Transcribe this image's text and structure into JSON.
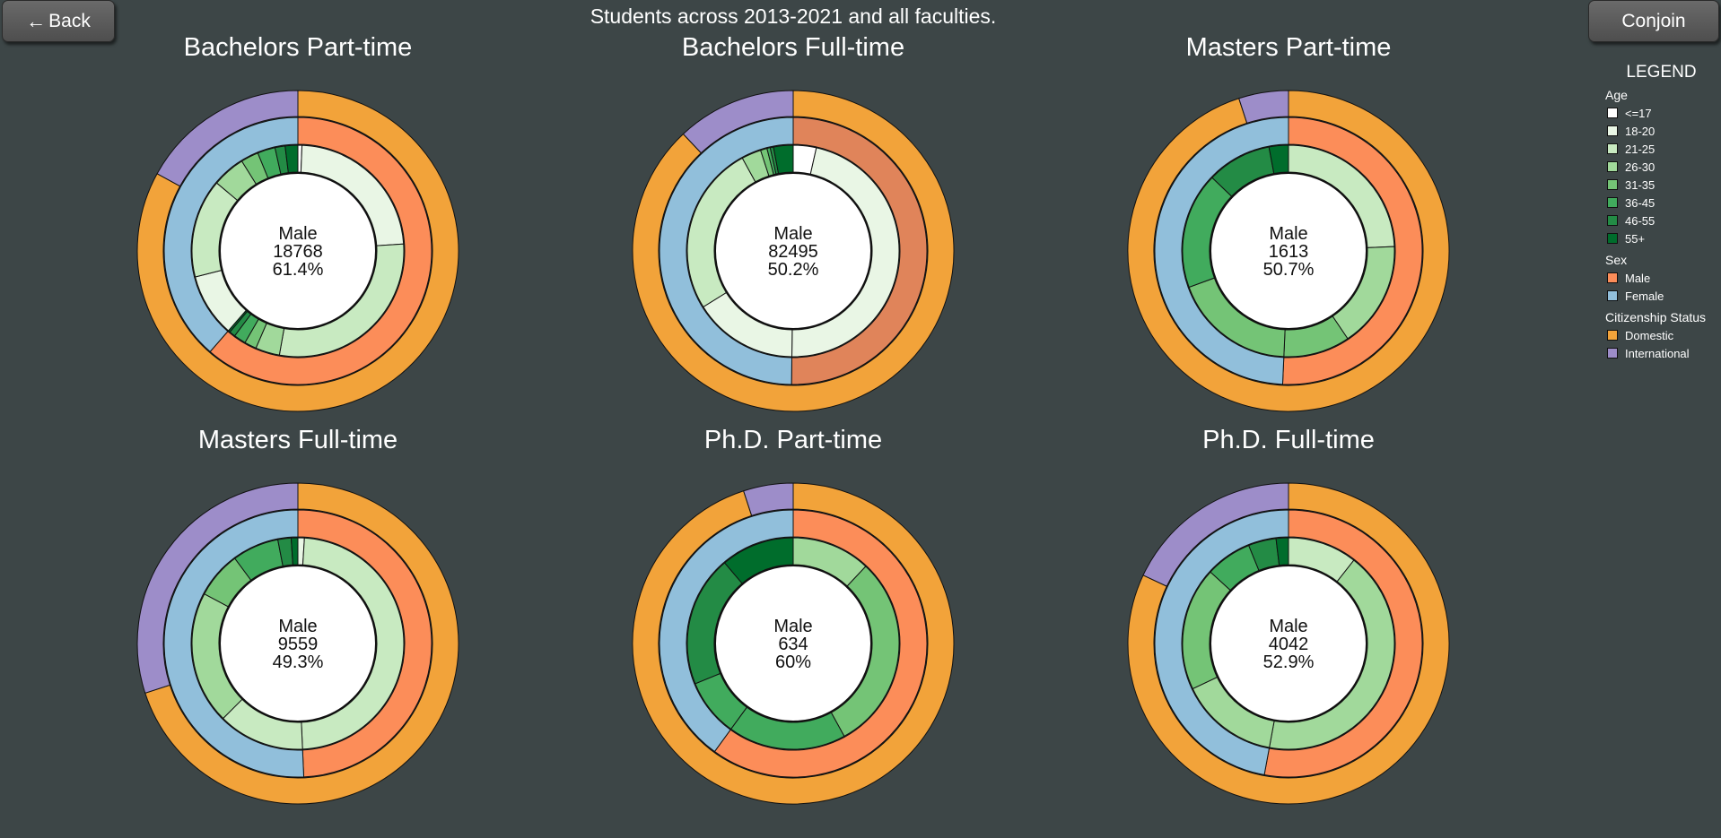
{
  "header": {
    "title": "Students across 2013-2021 and all faculties.",
    "back_label": "Back",
    "conjoin_label": "Conjoin"
  },
  "legend": {
    "title": "LEGEND",
    "groups": [
      {
        "title": "Age",
        "items": [
          {
            "label": "<=17",
            "color": "#ffffff"
          },
          {
            "label": "18-20",
            "color": "#e9f6e5"
          },
          {
            "label": "21-25",
            "color": "#c8eac1"
          },
          {
            "label": "26-30",
            "color": "#a1d99b"
          },
          {
            "label": "31-35",
            "color": "#74c476"
          },
          {
            "label": "36-45",
            "color": "#41ab5d"
          },
          {
            "label": "46-55",
            "color": "#238b45"
          },
          {
            "label": "55+",
            "color": "#006d2c"
          }
        ]
      },
      {
        "title": "Sex",
        "items": [
          {
            "label": "Male",
            "color": "#fc8d59"
          },
          {
            "label": "Female",
            "color": "#91bfdb"
          }
        ]
      },
      {
        "title": "Citizenship Status",
        "items": [
          {
            "label": "Domestic",
            "color": "#f2a33a"
          },
          {
            "label": "International",
            "color": "#9d8dc9"
          }
        ]
      }
    ]
  },
  "chart_data": [
    {
      "type": "pie",
      "title": "Bachelors Part-time",
      "center": {
        "label": "Male",
        "count": "18768",
        "percent": "61.4%"
      },
      "citizenship": [
        0.83,
        0.17
      ],
      "sex": [
        0.614,
        0.386
      ],
      "age_male": [
        0.01,
        0.38,
        0.47,
        0.06,
        0.03,
        0.03,
        0.015,
        0.005
      ],
      "age_female": [
        0.0,
        0.25,
        0.39,
        0.13,
        0.07,
        0.07,
        0.04,
        0.05
      ]
    },
    {
      "type": "pie",
      "title": "Bachelors Full-time",
      "center": {
        "label": "Male",
        "count": "82495",
        "percent": "50.2%"
      },
      "citizenship": [
        0.88,
        0.12
      ],
      "sex": [
        0.502,
        0.498
      ],
      "age_male": [
        0.07,
        0.93,
        0,
        0,
        0,
        0,
        0,
        0
      ],
      "age_female": [
        0.0,
        0.32,
        0.52,
        0.06,
        0.02,
        0.01,
        0.01,
        0.06
      ],
      "highlight_sex": "male"
    },
    {
      "type": "pie",
      "title": "Masters Part-time",
      "center": {
        "label": "Male",
        "count": "1613",
        "percent": "50.7%"
      },
      "citizenship": [
        0.95,
        0.05
      ],
      "sex": [
        0.507,
        0.493
      ],
      "age_male": [
        0,
        0,
        0.48,
        0.32,
        0.2,
        0,
        0,
        0
      ],
      "age_female": [
        0,
        0,
        0,
        0,
        0.38,
        0.36,
        0.2,
        0.06
      ]
    },
    {
      "type": "pie",
      "title": "Masters Full-time",
      "center": {
        "label": "Male",
        "count": "9559",
        "percent": "49.3%"
      },
      "citizenship": [
        0.7,
        0.3
      ],
      "sex": [
        0.493,
        0.507
      ],
      "age_male": [
        0,
        0.02,
        0.98,
        0,
        0,
        0,
        0,
        0
      ],
      "age_female": [
        0,
        0,
        0.26,
        0.4,
        0.14,
        0.14,
        0.04,
        0.02
      ]
    },
    {
      "type": "pie",
      "title": "Ph.D. Part-time",
      "center": {
        "label": "Male",
        "count": "634",
        "percent": "60%"
      },
      "citizenship": [
        0.95,
        0.05
      ],
      "sex": [
        0.6,
        0.4
      ],
      "age_male": [
        0.0,
        0.0,
        0.0,
        0.2,
        0.5,
        0.3,
        0,
        0
      ],
      "age_female": [
        0,
        0,
        0,
        0,
        0,
        0.22,
        0.5,
        0.28
      ]
    },
    {
      "type": "pie",
      "title": "Ph.D. Full-time",
      "center": {
        "label": "Male",
        "count": "4042",
        "percent": "52.9%"
      },
      "citizenship": [
        0.82,
        0.18
      ],
      "sex": [
        0.529,
        0.471
      ],
      "age_male": [
        0,
        0,
        0.2,
        0.8,
        0,
        0,
        0,
        0
      ],
      "age_female": [
        0,
        0,
        0,
        0.32,
        0.4,
        0.15,
        0.09,
        0.04
      ]
    }
  ]
}
